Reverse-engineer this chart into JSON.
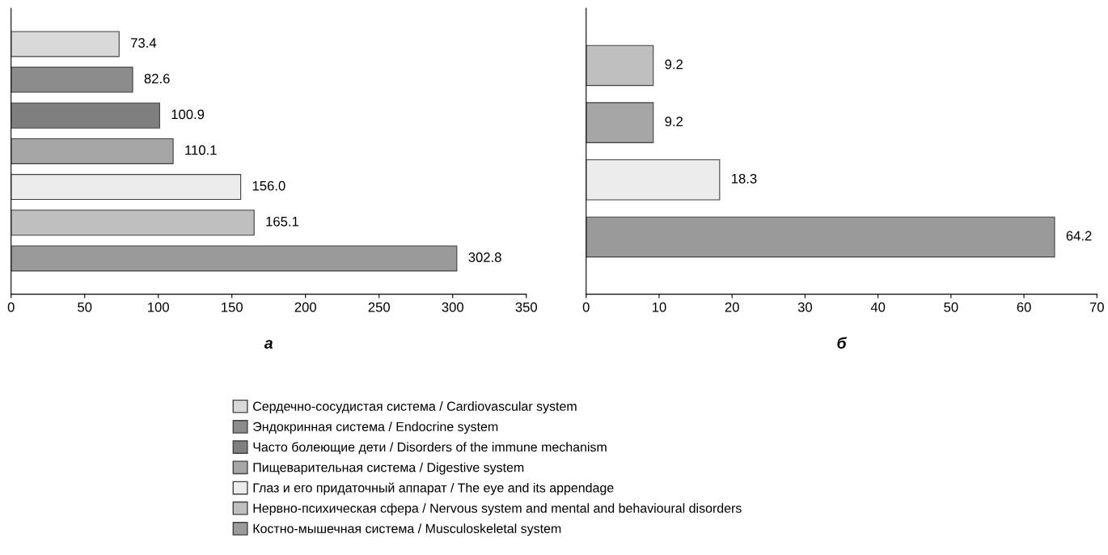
{
  "chart_data": [
    {
      "type": "bar",
      "orientation": "horizontal",
      "xlabel": "а",
      "categories": [
        null,
        null,
        null,
        null,
        null,
        null,
        null
      ],
      "xlim": [
        0,
        350
      ],
      "xticks": [
        0,
        50,
        100,
        150,
        200,
        250,
        300,
        350
      ],
      "tick_labels": "x",
      "grid": false,
      "legend": "bottom",
      "value_labels": [
        "73.4",
        "82.6",
        "100.9",
        "110.1",
        "156.0",
        "165.1",
        "302.8"
      ],
      "series": [
        {
          "name": "Сердечно-сосудистая система / Cardiovascular system",
          "color": "#d9d9d9",
          "values": [
            73.4,
            null,
            null,
            null,
            null,
            null,
            null
          ]
        },
        {
          "name": "Эндокринная система / Endocrine system",
          "color": "#8c8c8c",
          "values": [
            null,
            82.6,
            null,
            null,
            null,
            null,
            null
          ]
        },
        {
          "name": "Часто болеющие дети / Disorders of the immune mechanism",
          "color": "#7f7f7f",
          "values": [
            null,
            null,
            100.9,
            null,
            null,
            null,
            null
          ]
        },
        {
          "name": "Пищеварительная система / Digestive system",
          "color": "#a6a6a6",
          "values": [
            null,
            null,
            null,
            110.1,
            null,
            null,
            null
          ]
        },
        {
          "name": "Глаз и его придаточный аппарат / The eye and its appendage",
          "color": "#ececec",
          "values": [
            null,
            null,
            null,
            null,
            156.0,
            null,
            null
          ]
        },
        {
          "name": "Нервно-психическая сфера / Nervous system and mental and behavioural disorders",
          "color": "#bfbfbf",
          "values": [
            null,
            null,
            null,
            null,
            null,
            165.1,
            null
          ]
        },
        {
          "name": "Костно-мышечная система / Musculoskeletal system",
          "color": "#9a9a9a",
          "values": [
            null,
            null,
            null,
            null,
            null,
            null,
            302.8
          ]
        }
      ]
    },
    {
      "type": "bar",
      "orientation": "horizontal",
      "xlabel": "б",
      "categories": [
        null,
        null,
        null,
        null
      ],
      "xlim": [
        0,
        70
      ],
      "xticks": [
        0,
        10,
        20,
        30,
        40,
        50,
        60,
        70
      ],
      "tick_labels": "x",
      "grid": false,
      "values": [
        9.2,
        9.2,
        18.3,
        64.2
      ],
      "colors": [
        "#bfbfbf",
        "#a6a6a6",
        "#ececec",
        "#9a9a9a"
      ],
      "value_labels": [
        "9.2",
        "9.2",
        "18.3",
        "64.2"
      ]
    }
  ]
}
